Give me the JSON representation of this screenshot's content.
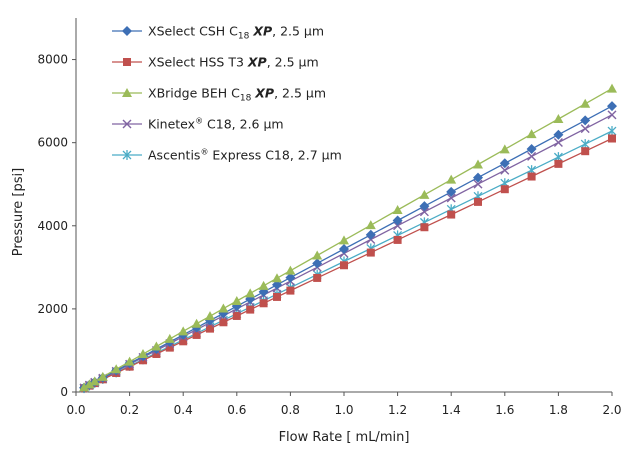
{
  "chart_data": {
    "type": "line",
    "title": "",
    "xlabel": "Flow Rate [ mL/min]",
    "ylabel": "Pressure [psi]",
    "xlim": [
      0,
      2.0
    ],
    "ylim": [
      0,
      9000
    ],
    "x_ticks": [
      "0.0",
      "0.2",
      "0.4",
      "0.6",
      "0.8",
      "1.0",
      "1.2",
      "1.4",
      "1.6",
      "1.8",
      "2.0"
    ],
    "y_ticks": [
      "0",
      "2000",
      "4000",
      "6000",
      "8000"
    ],
    "y_tick_values": [
      0,
      2000,
      4000,
      6000,
      8000
    ],
    "grid": false,
    "legend_position": "top-left",
    "x": [
      0.03,
      0.05,
      0.07,
      0.1,
      0.15,
      0.2,
      0.25,
      0.3,
      0.35,
      0.4,
      0.45,
      0.5,
      0.55,
      0.6,
      0.65,
      0.7,
      0.75,
      0.8,
      0.9,
      1.0,
      1.1,
      1.2,
      1.3,
      1.4,
      1.5,
      1.6,
      1.7,
      1.8,
      1.9,
      2.0
    ],
    "series": [
      {
        "name": "XSelect CSH C18 XP, 2.5 μm",
        "legend_parts": [
          "XSelect CSH C",
          "18",
          "XP",
          ", 2.5 μm"
        ],
        "color": "#3d6fb5",
        "marker": "diamond",
        "values": [
          103,
          172,
          241,
          344,
          516,
          688,
          860,
          1032,
          1204,
          1376,
          1548,
          1720,
          1892,
          2064,
          2236,
          2408,
          2580,
          2752,
          3096,
          3440,
          3784,
          4128,
          4472,
          4816,
          5160,
          5504,
          5848,
          6192,
          6536,
          6880
        ]
      },
      {
        "name": "XSelect HSS T3 XP, 2.5 μm",
        "legend_parts": [
          "XSelect HSS T3 ",
          "XP",
          ", 2.5 μm"
        ],
        "color": "#c0504d",
        "marker": "square",
        "values": [
          92,
          153,
          214,
          305,
          458,
          610,
          763,
          915,
          1068,
          1220,
          1373,
          1525,
          1678,
          1830,
          1983,
          2135,
          2288,
          2440,
          2745,
          3050,
          3355,
          3660,
          3965,
          4270,
          4575,
          4880,
          5185,
          5490,
          5795,
          6100
        ]
      },
      {
        "name": "XBridge BEH C18 XP, 2.5 μm",
        "legend_parts": [
          "XBridge BEH C",
          "18",
          "XP",
          ", 2.5 μm"
        ],
        "color": "#9bbb59",
        "marker": "triangle",
        "values": [
          110,
          183,
          256,
          365,
          548,
          730,
          913,
          1095,
          1278,
          1460,
          1643,
          1825,
          2008,
          2190,
          2373,
          2555,
          2738,
          2920,
          3285,
          3650,
          4015,
          4380,
          4745,
          5110,
          5475,
          5840,
          6205,
          6570,
          6935,
          7300
        ]
      },
      {
        "name": "Kinetex® C18, 2.6 μm",
        "legend_parts": [
          "Kinetex",
          "®",
          " C18, 2.6 μm"
        ],
        "color": "#8064a2",
        "marker": "x",
        "values": [
          100,
          167,
          234,
          333,
          500,
          667,
          834,
          1000,
          1167,
          1334,
          1501,
          1667,
          1834,
          2001,
          2168,
          2334,
          2501,
          2668,
          3002,
          3335,
          3669,
          4002,
          4336,
          4669,
          5003,
          5336,
          5670,
          6003,
          6337,
          6670
        ]
      },
      {
        "name": "Ascentis® Express C18, 2.7 μm",
        "legend_parts": [
          "Ascentis",
          "®",
          " Express C18, 2.7 μm"
        ],
        "color": "#4bacc6",
        "marker": "star",
        "values": [
          94,
          157,
          220,
          314,
          471,
          628,
          785,
          942,
          1099,
          1256,
          1413,
          1570,
          1727,
          1884,
          2041,
          2198,
          2355,
          2512,
          2826,
          3140,
          3454,
          3768,
          4082,
          4396,
          4710,
          5024,
          5338,
          5652,
          5966,
          6280
        ]
      }
    ]
  }
}
